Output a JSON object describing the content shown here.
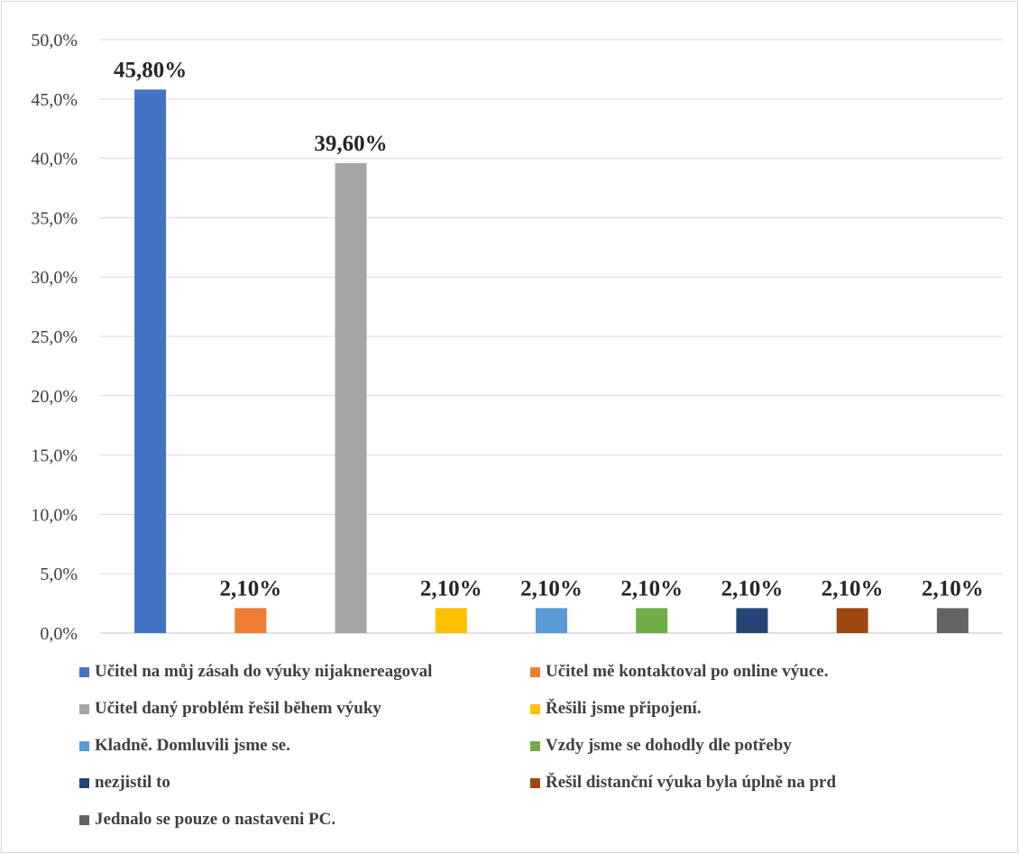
{
  "chart_data": {
    "type": "bar",
    "ylim": [
      0,
      50
    ],
    "ytick_step": 5,
    "yticks": [
      "0,0%",
      "5,0%",
      "10,0%",
      "15,0%",
      "20,0%",
      "25,0%",
      "30,0%",
      "35,0%",
      "40,0%",
      "45,0%",
      "50,0%"
    ],
    "grid": true,
    "legend_position": "bottom",
    "series": [
      {
        "name": "Učitel na můj zásah do výuky nijaknereagoval",
        "value": 45.8,
        "label": "45,80%",
        "color": "#4472C4"
      },
      {
        "name": "Učitel mě kontaktoval po online výuce.",
        "value": 2.1,
        "label": "2,10%",
        "color": "#ED7D31"
      },
      {
        "name": "Učitel daný problém řešil během výuky",
        "value": 39.6,
        "label": "39,60%",
        "color": "#A5A5A5"
      },
      {
        "name": "Řešili jsme připojení.",
        "value": 2.1,
        "label": "2,10%",
        "color": "#FFC000"
      },
      {
        "name": "Kladně. Domluvili jsme se.",
        "value": 2.1,
        "label": "2,10%",
        "color": "#5B9BD5"
      },
      {
        "name": "Vzdy jsme se dohodly dle potřeby",
        "value": 2.1,
        "label": "2,10%",
        "color": "#70AD47"
      },
      {
        "name": "nezjistil to",
        "value": 2.1,
        "label": "2,10%",
        "color": "#264478"
      },
      {
        "name": "Řešil distanční výuka byla úplně na prd",
        "value": 2.1,
        "label": "2,10%",
        "color": "#9E480E"
      },
      {
        "name": "Jednalo se pouze o nastaveni PC.",
        "value": 2.1,
        "label": "2,10%",
        "color": "#636363"
      }
    ]
  }
}
